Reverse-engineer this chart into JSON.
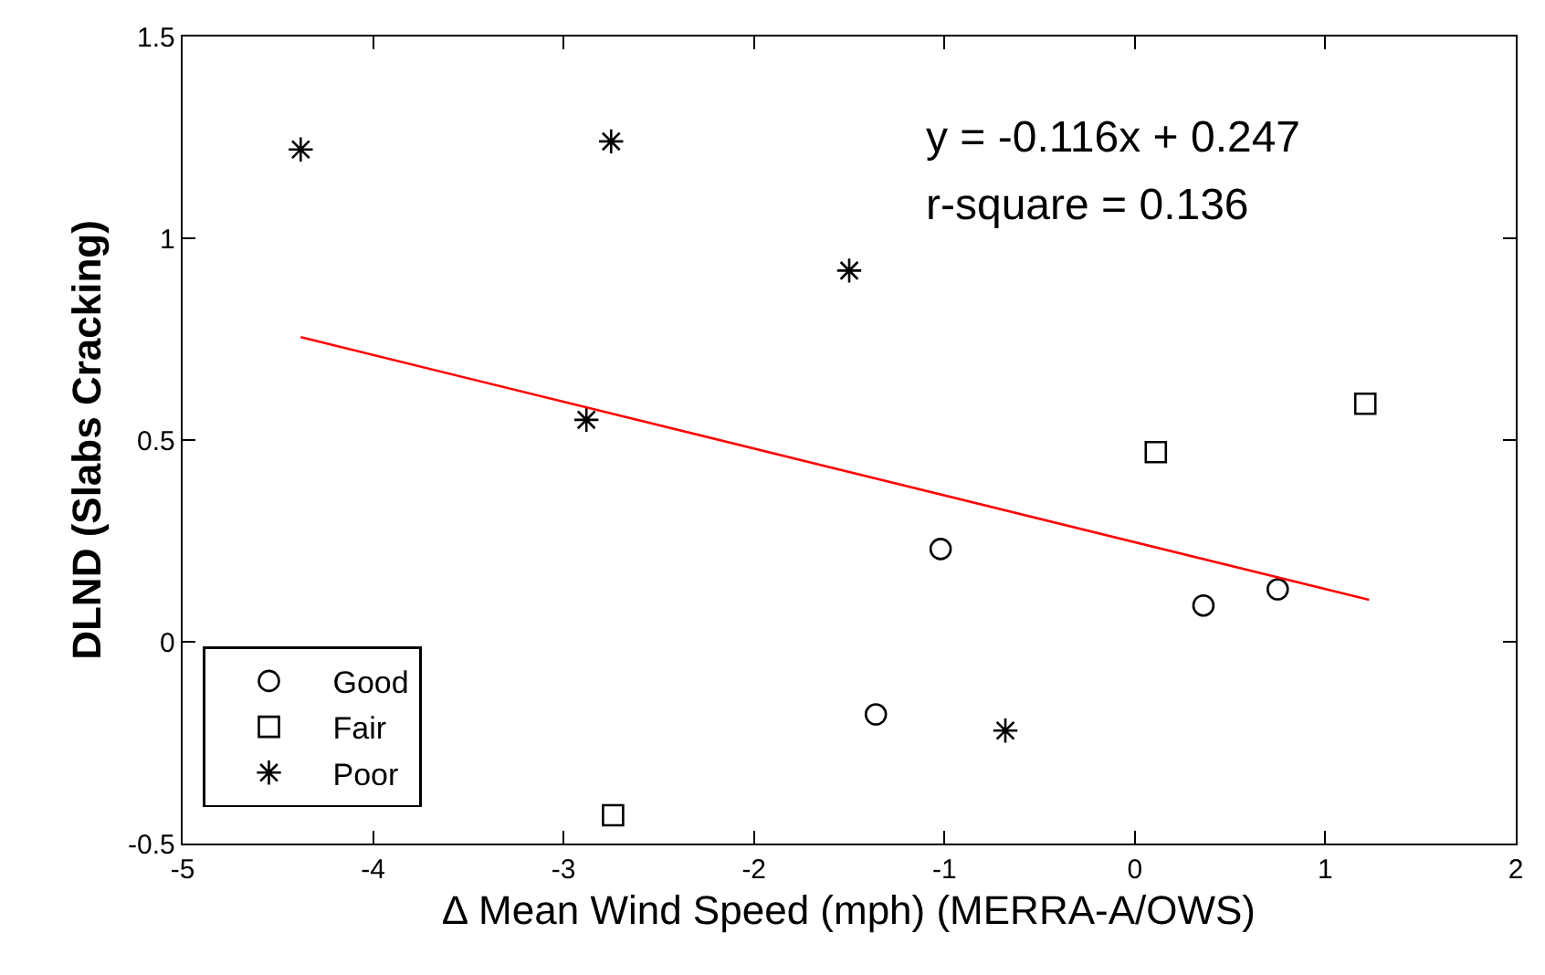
{
  "chart_data": {
    "type": "scatter",
    "xlabel": "∆ Mean Wind Speed (mph) (MERRA-A/OWS)",
    "ylabel": "DLND (Slabs Cracking)",
    "series": [
      {
        "name": "Good",
        "color": "#000000",
        "marker": "circle",
        "x": [
          -1.36,
          -1.02,
          0.36,
          0.75
        ],
        "values": [
          -0.18,
          0.23,
          0.09,
          0.13
        ]
      },
      {
        "name": "Fair",
        "color": "#000000",
        "marker": "square",
        "x": [
          -2.74,
          0.11,
          1.21
        ],
        "values": [
          -0.43,
          0.47,
          0.59
        ]
      },
      {
        "name": "Poor",
        "color": "#000000",
        "marker": "cross",
        "x": [
          -4.38,
          -2.75,
          -2.88,
          -1.5,
          -0.68
        ],
        "values": [
          1.22,
          1.24,
          0.55,
          0.92,
          -0.22
        ]
      },
      {
        "type": "line",
        "color": "#ff0000",
        "x": [
          -4.38,
          1.23
        ],
        "values": [
          0.755,
          0.104
        ]
      }
    ],
    "annotations": [
      "y = -0.116x + 0.247",
      "r-square = 0.136"
    ],
    "xlim": [
      -5,
      2
    ],
    "xticks": [
      -5,
      -4,
      -3,
      -2,
      -1,
      0,
      1,
      2
    ],
    "ylim": [
      -0.5,
      1.5
    ],
    "yticks": [
      -0.5,
      0,
      0.5,
      1,
      1.5
    ],
    "legend": "bottom left"
  }
}
